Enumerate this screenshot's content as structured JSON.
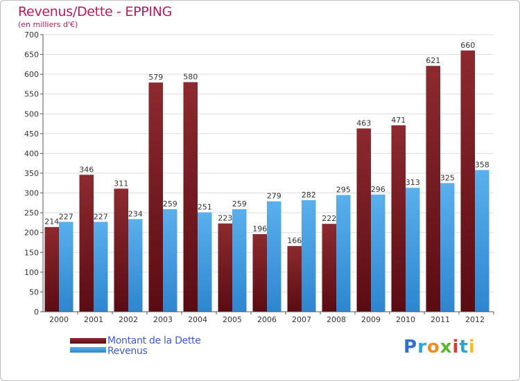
{
  "title": "Revenus/Dette - EPPING",
  "subtitle": "(en milliers d'€)",
  "logo": {
    "text": "Proxiti",
    "letter_colors": [
      "#2f6fd0",
      "#2aa5d8",
      "#f08c1e",
      "#5bb531",
      "#e3342f",
      "#2aa5d8",
      "#f2c21b"
    ]
  },
  "chart_data": {
    "type": "bar",
    "categories": [
      "2000",
      "2001",
      "2002",
      "2003",
      "2004",
      "2005",
      "2006",
      "2007",
      "2008",
      "2009",
      "2010",
      "2011",
      "2012"
    ],
    "series": [
      {
        "name": "Montant de la Dette",
        "color": "#7a1f24",
        "values": [
          214,
          346,
          311,
          579,
          580,
          223,
          196,
          166,
          222,
          463,
          471,
          621,
          660
        ]
      },
      {
        "name": "Revenus",
        "color": "#3d9be0",
        "values": [
          227,
          227,
          234,
          259,
          251,
          259,
          279,
          282,
          295,
          296,
          313,
          325,
          358
        ]
      }
    ],
    "ylim": [
      0,
      700
    ],
    "yticks": [
      0,
      50,
      100,
      150,
      200,
      250,
      300,
      350,
      400,
      450,
      500,
      550,
      600,
      650,
      700
    ],
    "grid": true,
    "legend": "bottom-left"
  }
}
